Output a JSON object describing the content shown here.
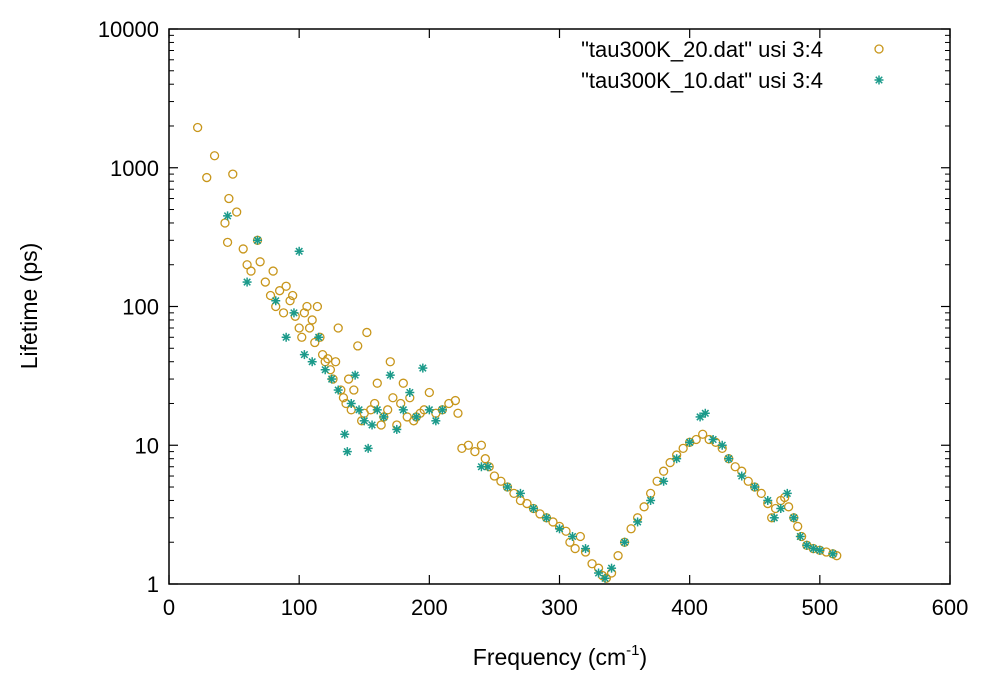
{
  "chart_data": {
    "type": "scatter",
    "title": "",
    "xlabel": "Frequency (cm",
    "xlabel_sup": "-1",
    "xlabel_tail": ")",
    "ylabel": "Lifetime (ps)",
    "xlim": [
      0,
      600
    ],
    "ylim": [
      1,
      10000
    ],
    "yscale": "log",
    "grid": false,
    "legend_position": "top-right",
    "x_ticks": [
      0,
      100,
      200,
      300,
      400,
      500,
      600
    ],
    "x_tick_labels": [
      "0",
      "100",
      "200",
      "300",
      "400",
      "500",
      "600"
    ],
    "y_ticks": [
      1,
      10,
      100,
      1000,
      10000
    ],
    "y_tick_labels": [
      "1",
      "10",
      "100",
      "1000",
      "10000"
    ],
    "series": [
      {
        "name": "\"tau300K_20.dat\" usi 3:4",
        "marker": "circle",
        "color": "#c8961b",
        "points": [
          [
            22,
            1950
          ],
          [
            29,
            850
          ],
          [
            35,
            1220
          ],
          [
            43,
            400
          ],
          [
            46,
            600
          ],
          [
            49,
            900
          ],
          [
            52,
            480
          ],
          [
            45,
            290
          ],
          [
            57,
            260
          ],
          [
            60,
            200
          ],
          [
            63,
            180
          ],
          [
            68,
            300
          ],
          [
            70,
            210
          ],
          [
            74,
            150
          ],
          [
            78,
            120
          ],
          [
            80,
            180
          ],
          [
            82,
            100
          ],
          [
            85,
            130
          ],
          [
            88,
            90
          ],
          [
            90,
            140
          ],
          [
            93,
            110
          ],
          [
            95,
            120
          ],
          [
            97,
            85
          ],
          [
            100,
            70
          ],
          [
            102,
            60
          ],
          [
            104,
            90
          ],
          [
            106,
            100
          ],
          [
            108,
            70
          ],
          [
            110,
            80
          ],
          [
            112,
            55
          ],
          [
            114,
            100
          ],
          [
            116,
            60
          ],
          [
            118,
            45
          ],
          [
            120,
            40
          ],
          [
            122,
            42
          ],
          [
            124,
            35
          ],
          [
            126,
            30
          ],
          [
            128,
            40
          ],
          [
            130,
            70
          ],
          [
            132,
            25
          ],
          [
            134,
            22
          ],
          [
            136,
            20
          ],
          [
            138,
            30
          ],
          [
            140,
            18
          ],
          [
            142,
            25
          ],
          [
            145,
            52
          ],
          [
            148,
            15
          ],
          [
            150,
            17
          ],
          [
            152,
            65
          ],
          [
            155,
            18
          ],
          [
            158,
            20
          ],
          [
            160,
            28
          ],
          [
            163,
            14
          ],
          [
            165,
            16
          ],
          [
            168,
            18
          ],
          [
            170,
            40
          ],
          [
            172,
            22
          ],
          [
            175,
            14
          ],
          [
            178,
            20
          ],
          [
            180,
            28
          ],
          [
            183,
            16
          ],
          [
            185,
            22
          ],
          [
            188,
            15
          ],
          [
            190,
            16
          ],
          [
            193,
            17
          ],
          [
            196,
            18
          ],
          [
            200,
            24
          ],
          [
            205,
            17
          ],
          [
            210,
            18
          ],
          [
            215,
            20
          ],
          [
            220,
            21
          ],
          [
            222,
            17
          ],
          [
            225,
            9.5
          ],
          [
            230,
            10
          ],
          [
            235,
            9
          ],
          [
            240,
            10
          ],
          [
            243,
            8
          ],
          [
            246,
            7
          ],
          [
            250,
            6
          ],
          [
            255,
            5.5
          ],
          [
            260,
            5
          ],
          [
            265,
            4.5
          ],
          [
            270,
            4
          ],
          [
            275,
            3.8
          ],
          [
            280,
            3.5
          ],
          [
            285,
            3.2
          ],
          [
            290,
            3
          ],
          [
            295,
            2.8
          ],
          [
            300,
            2.6
          ],
          [
            305,
            2.4
          ],
          [
            308,
            2
          ],
          [
            312,
            1.8
          ],
          [
            316,
            2.2
          ],
          [
            320,
            1.7
          ],
          [
            325,
            1.4
          ],
          [
            330,
            1.3
          ],
          [
            333,
            1.15
          ],
          [
            336,
            1.1
          ],
          [
            340,
            1.2
          ],
          [
            345,
            1.6
          ],
          [
            350,
            2
          ],
          [
            355,
            2.5
          ],
          [
            360,
            3
          ],
          [
            365,
            3.6
          ],
          [
            370,
            4.5
          ],
          [
            375,
            5.5
          ],
          [
            380,
            6.5
          ],
          [
            385,
            7.5
          ],
          [
            390,
            8.5
          ],
          [
            395,
            9.5
          ],
          [
            400,
            10.5
          ],
          [
            405,
            11
          ],
          [
            410,
            12
          ],
          [
            415,
            11
          ],
          [
            420,
            10.5
          ],
          [
            425,
            9.5
          ],
          [
            430,
            8
          ],
          [
            435,
            7
          ],
          [
            440,
            6.5
          ],
          [
            445,
            5.5
          ],
          [
            450,
            5
          ],
          [
            455,
            4.5
          ],
          [
            460,
            3.8
          ],
          [
            463,
            3
          ],
          [
            466,
            3.5
          ],
          [
            470,
            4
          ],
          [
            473,
            4.2
          ],
          [
            476,
            3.6
          ],
          [
            480,
            3
          ],
          [
            483,
            2.6
          ],
          [
            486,
            2.2
          ],
          [
            490,
            1.9
          ],
          [
            495,
            1.8
          ],
          [
            500,
            1.75
          ],
          [
            505,
            1.7
          ],
          [
            510,
            1.65
          ],
          [
            513,
            1.6
          ]
        ]
      },
      {
        "name": "\"tau300K_10.dat\" usi 3:4",
        "marker": "star",
        "color": "#1b9a8a",
        "points": [
          [
            45,
            450
          ],
          [
            60,
            150
          ],
          [
            68,
            300
          ],
          [
            82,
            110
          ],
          [
            90,
            60
          ],
          [
            96,
            90
          ],
          [
            100,
            250
          ],
          [
            104,
            45
          ],
          [
            110,
            40
          ],
          [
            115,
            60
          ],
          [
            120,
            35
          ],
          [
            125,
            30
          ],
          [
            130,
            25
          ],
          [
            135,
            12
          ],
          [
            137,
            9
          ],
          [
            140,
            20
          ],
          [
            143,
            32
          ],
          [
            146,
            18
          ],
          [
            150,
            15
          ],
          [
            153,
            9.5
          ],
          [
            156,
            14
          ],
          [
            160,
            18
          ],
          [
            165,
            16
          ],
          [
            170,
            32
          ],
          [
            175,
            13
          ],
          [
            180,
            18
          ],
          [
            185,
            24
          ],
          [
            190,
            16
          ],
          [
            195,
            36
          ],
          [
            200,
            18
          ],
          [
            205,
            15
          ],
          [
            210,
            18
          ],
          [
            240,
            7
          ],
          [
            245,
            7
          ],
          [
            260,
            5
          ],
          [
            270,
            4.5
          ],
          [
            280,
            3.5
          ],
          [
            290,
            3
          ],
          [
            300,
            2.5
          ],
          [
            310,
            2.2
          ],
          [
            320,
            1.8
          ],
          [
            330,
            1.2
          ],
          [
            335,
            1.1
          ],
          [
            340,
            1.3
          ],
          [
            350,
            2
          ],
          [
            360,
            2.8
          ],
          [
            370,
            4
          ],
          [
            380,
            5.5
          ],
          [
            390,
            8
          ],
          [
            400,
            10.5
          ],
          [
            408,
            16
          ],
          [
            412,
            17
          ],
          [
            418,
            11
          ],
          [
            425,
            10
          ],
          [
            430,
            8
          ],
          [
            440,
            6
          ],
          [
            450,
            5
          ],
          [
            460,
            4
          ],
          [
            465,
            3
          ],
          [
            470,
            3.5
          ],
          [
            475,
            4.5
          ],
          [
            480,
            3
          ],
          [
            485,
            2.2
          ],
          [
            490,
            1.9
          ],
          [
            495,
            1.8
          ],
          [
            500,
            1.75
          ],
          [
            510,
            1.65
          ]
        ]
      }
    ]
  }
}
